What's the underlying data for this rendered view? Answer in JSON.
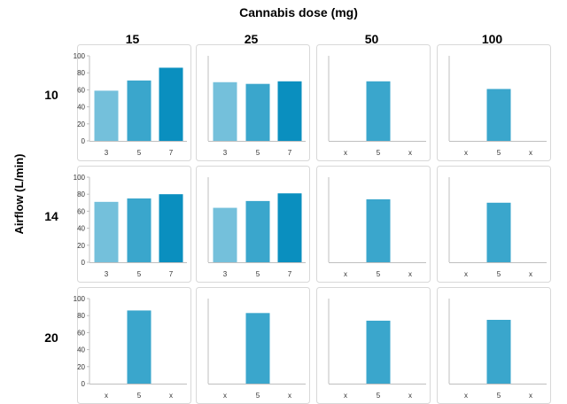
{
  "chart_data": {
    "type": "bar",
    "title": "Cannabis dose (mg)",
    "ylabel": "Airflow (L/min)",
    "column_labels": [
      "15",
      "25",
      "50",
      "100"
    ],
    "row_labels": [
      "10",
      "14",
      "20"
    ],
    "ylim": [
      0,
      100
    ],
    "yticks": [
      0,
      20,
      40,
      60,
      80,
      100
    ],
    "grid": false,
    "colors": {
      "3": "#74c0db",
      "5": "#3aa6cc",
      "7": "#0a8fbf",
      "frame": "#d8d8d8",
      "axis": "#bfbfbf"
    },
    "panels": [
      {
        "row": "10",
        "col": "15",
        "categories": [
          "3",
          "5",
          "7"
        ],
        "values": [
          59,
          71,
          86
        ]
      },
      {
        "row": "10",
        "col": "25",
        "categories": [
          "3",
          "5",
          "7"
        ],
        "values": [
          69,
          67,
          70
        ]
      },
      {
        "row": "10",
        "col": "50",
        "categories": [
          "x",
          "5",
          "x"
        ],
        "values": [
          null,
          70,
          null
        ]
      },
      {
        "row": "10",
        "col": "100",
        "categories": [
          "x",
          "5",
          "x"
        ],
        "values": [
          null,
          61,
          null
        ]
      },
      {
        "row": "14",
        "col": "15",
        "categories": [
          "3",
          "5",
          "7"
        ],
        "values": [
          71,
          75,
          80
        ]
      },
      {
        "row": "14",
        "col": "25",
        "categories": [
          "3",
          "5",
          "7"
        ],
        "values": [
          64,
          72,
          81
        ]
      },
      {
        "row": "14",
        "col": "50",
        "categories": [
          "x",
          "5",
          "x"
        ],
        "values": [
          null,
          74,
          null
        ]
      },
      {
        "row": "14",
        "col": "100",
        "categories": [
          "x",
          "5",
          "x"
        ],
        "values": [
          null,
          70,
          null
        ]
      },
      {
        "row": "20",
        "col": "15",
        "categories": [
          "x",
          "5",
          "x"
        ],
        "values": [
          null,
          86,
          null
        ]
      },
      {
        "row": "20",
        "col": "25",
        "categories": [
          "x",
          "5",
          "x"
        ],
        "values": [
          null,
          83,
          null
        ]
      },
      {
        "row": "20",
        "col": "50",
        "categories": [
          "x",
          "5",
          "x"
        ],
        "values": [
          null,
          74,
          null
        ]
      },
      {
        "row": "20",
        "col": "100",
        "categories": [
          "x",
          "5",
          "x"
        ],
        "values": [
          null,
          75,
          null
        ]
      }
    ]
  }
}
